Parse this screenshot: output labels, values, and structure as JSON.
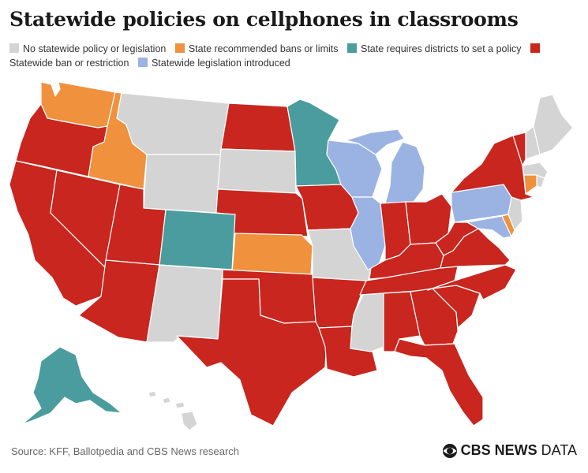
{
  "title": "Statewide policies on cellphones in classrooms",
  "legend": [
    {
      "label": "No statewide policy or legislation",
      "color": "#d4d4d4"
    },
    {
      "label": "State recommended bans or limits",
      "color": "#f0913e"
    },
    {
      "label": "State requires districts to set a policy",
      "color": "#4b9c9e"
    },
    {
      "label": "Statewide ban or restriction",
      "color": "#c8261e"
    },
    {
      "label": "Statewide legislation introduced",
      "color": "#9bb3e2"
    }
  ],
  "states": {
    "none": [
      "Montana",
      "Wyoming",
      "South Dakota",
      "New Mexico",
      "Missouri",
      "Mississippi",
      "Maine",
      "New Hampshire",
      "Massachusetts",
      "Rhode Island",
      "New Jersey",
      "Hawaii"
    ],
    "recommended": [
      "Washington",
      "Idaho",
      "Kansas",
      "Connecticut",
      "Delaware"
    ],
    "district_policy": [
      "Minnesota",
      "Colorado",
      "Alaska"
    ],
    "ban": [
      "Oregon",
      "California",
      "Nevada",
      "Utah",
      "Arizona",
      "North Dakota",
      "Nebraska",
      "Iowa",
      "Oklahoma",
      "Texas",
      "Arkansas",
      "Louisiana",
      "Indiana",
      "Ohio",
      "Kentucky",
      "Tennessee",
      "Alabama",
      "Georgia",
      "Florida",
      "South Carolina",
      "North Carolina",
      "Virginia",
      "West Virginia",
      "New York",
      "Vermont"
    ],
    "introduced": [
      "Wisconsin",
      "Michigan",
      "Illinois",
      "Pennsylvania",
      "Maryland"
    ]
  },
  "source": "Source: KFF, Ballotpedia and CBS News research",
  "brand": {
    "bold": "CBS NEWS",
    "light": "DATA"
  }
}
